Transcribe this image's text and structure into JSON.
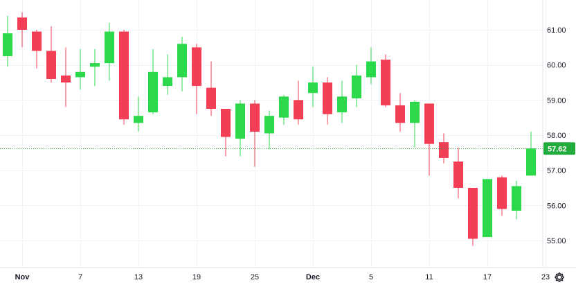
{
  "chart_data": {
    "type": "candlestick",
    "ylim": [
      54.3,
      61.7
    ],
    "y_ticks": [
      55.0,
      56.0,
      57.0,
      58.0,
      59.0,
      60.0,
      61.0
    ],
    "y_tick_labels": [
      "55.00",
      "56.00",
      "57.00",
      "58.00",
      "59.00",
      "60.00",
      "61.00"
    ],
    "x_tick_labels": [
      {
        "label": "Nov",
        "index": 1,
        "bold": true
      },
      {
        "label": "7",
        "index": 5,
        "bold": false
      },
      {
        "label": "13",
        "index": 9,
        "bold": false
      },
      {
        "label": "19",
        "index": 13,
        "bold": false
      },
      {
        "label": "25",
        "index": 17,
        "bold": false
      },
      {
        "label": "Dec",
        "index": 21,
        "bold": true
      },
      {
        "label": "5",
        "index": 25,
        "bold": false
      },
      {
        "label": "11",
        "index": 29,
        "bold": false
      },
      {
        "label": "17",
        "index": 33,
        "bold": false
      },
      {
        "label": "23",
        "index": 37,
        "bold": false
      }
    ],
    "candles": [
      {
        "o": 60.25,
        "h": 61.4,
        "l": 59.95,
        "c": 60.9
      },
      {
        "o": 61.35,
        "h": 61.5,
        "l": 60.5,
        "c": 61.0
      },
      {
        "o": 60.95,
        "h": 61.0,
        "l": 59.9,
        "c": 60.4
      },
      {
        "o": 60.4,
        "h": 61.1,
        "l": 59.5,
        "c": 59.6
      },
      {
        "o": 59.7,
        "h": 60.5,
        "l": 58.8,
        "c": 59.5
      },
      {
        "o": 59.65,
        "h": 60.45,
        "l": 59.3,
        "c": 59.8
      },
      {
        "o": 59.95,
        "h": 60.45,
        "l": 59.4,
        "c": 60.05
      },
      {
        "o": 60.05,
        "h": 61.2,
        "l": 59.55,
        "c": 60.95
      },
      {
        "o": 60.95,
        "h": 61.0,
        "l": 58.3,
        "c": 58.45
      },
      {
        "o": 58.35,
        "h": 59.1,
        "l": 58.1,
        "c": 58.55
      },
      {
        "o": 58.65,
        "h": 60.45,
        "l": 58.6,
        "c": 59.8
      },
      {
        "o": 59.4,
        "h": 60.3,
        "l": 59.15,
        "c": 59.65
      },
      {
        "o": 59.65,
        "h": 60.8,
        "l": 59.25,
        "c": 60.6
      },
      {
        "o": 60.5,
        "h": 60.6,
        "l": 58.6,
        "c": 59.4
      },
      {
        "o": 59.35,
        "h": 60.1,
        "l": 58.55,
        "c": 58.75
      },
      {
        "o": 58.75,
        "h": 58.75,
        "l": 57.4,
        "c": 57.95
      },
      {
        "o": 57.9,
        "h": 59.0,
        "l": 57.4,
        "c": 58.9
      },
      {
        "o": 58.9,
        "h": 59.0,
        "l": 57.1,
        "c": 58.1
      },
      {
        "o": 58.05,
        "h": 58.7,
        "l": 57.6,
        "c": 58.55
      },
      {
        "o": 58.5,
        "h": 59.15,
        "l": 58.3,
        "c": 59.1
      },
      {
        "o": 59.0,
        "h": 59.55,
        "l": 58.3,
        "c": 58.45
      },
      {
        "o": 59.2,
        "h": 59.95,
        "l": 58.8,
        "c": 59.5
      },
      {
        "o": 59.5,
        "h": 59.65,
        "l": 58.3,
        "c": 58.6
      },
      {
        "o": 58.65,
        "h": 59.55,
        "l": 58.35,
        "c": 59.1
      },
      {
        "o": 59.05,
        "h": 60.0,
        "l": 58.8,
        "c": 59.7
      },
      {
        "o": 59.65,
        "h": 60.5,
        "l": 59.45,
        "c": 60.1
      },
      {
        "o": 60.15,
        "h": 60.3,
        "l": 58.8,
        "c": 58.85
      },
      {
        "o": 58.85,
        "h": 59.2,
        "l": 58.1,
        "c": 58.35
      },
      {
        "o": 58.35,
        "h": 59.0,
        "l": 57.65,
        "c": 58.95
      },
      {
        "o": 58.9,
        "h": 58.9,
        "l": 56.85,
        "c": 57.75
      },
      {
        "o": 57.8,
        "h": 58.05,
        "l": 57.2,
        "c": 57.35
      },
      {
        "o": 57.25,
        "h": 57.65,
        "l": 56.2,
        "c": 56.5
      },
      {
        "o": 56.5,
        "h": 56.5,
        "l": 54.85,
        "c": 55.05
      },
      {
        "o": 55.1,
        "h": 56.75,
        "l": 55.1,
        "c": 56.75
      },
      {
        "o": 56.8,
        "h": 56.85,
        "l": 55.7,
        "c": 55.9
      },
      {
        "o": 55.85,
        "h": 56.7,
        "l": 55.6,
        "c": 56.55
      },
      {
        "o": 56.85,
        "h": 58.1,
        "l": 56.85,
        "c": 57.62
      }
    ],
    "last_price": 57.62,
    "last_price_label": "57.62",
    "colors": {
      "up": "#2bd94a",
      "down": "#f23f55",
      "last_price": "#22ab3d",
      "grid": "#f0f3fa",
      "axis_text": "#131722"
    },
    "grid": true
  },
  "toolbar": {
    "settings_icon": "gear-icon"
  }
}
